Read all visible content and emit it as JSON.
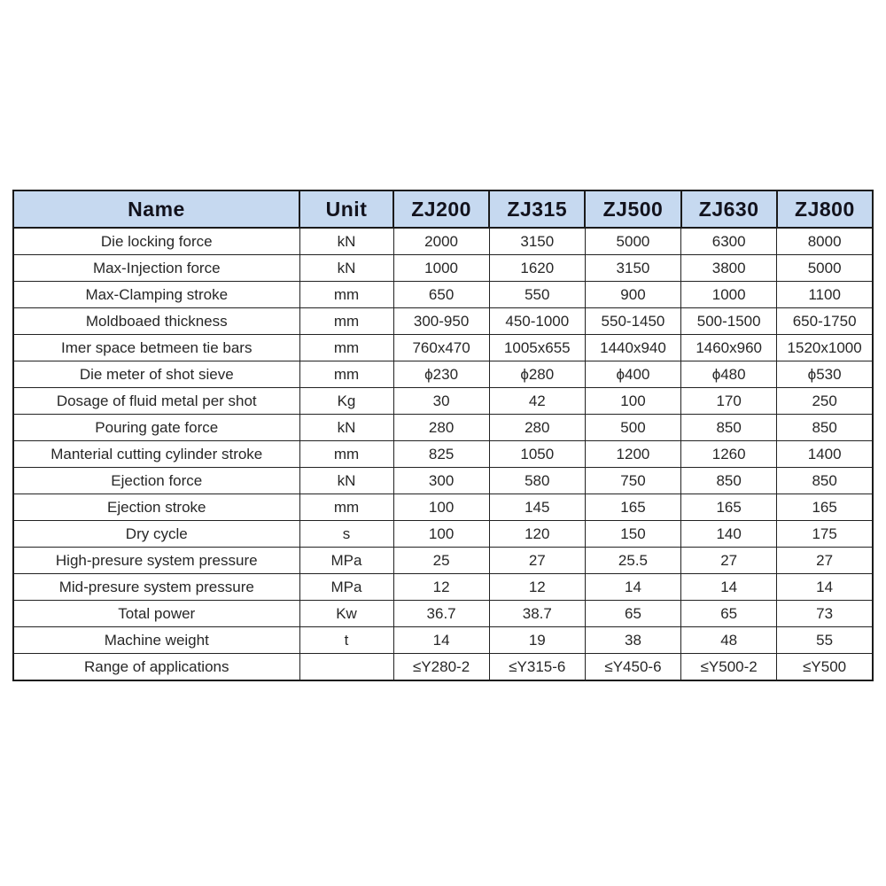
{
  "colors": {
    "page_bg": "#ffffff",
    "header_bg": "#c6d9f0",
    "header_text": "#12121c",
    "body_text": "#272727",
    "border": "#1b1b1b"
  },
  "table": {
    "columns": [
      "Name",
      "Unit",
      "ZJ200",
      "ZJ315",
      "ZJ500",
      "ZJ630",
      "ZJ800"
    ],
    "rows": [
      {
        "name": "Die locking force",
        "unit": "kN",
        "values": [
          "2000",
          "3150",
          "5000",
          "6300",
          "8000"
        ]
      },
      {
        "name": "Max-Injection force",
        "unit": "kN",
        "values": [
          "1000",
          "1620",
          "3150",
          "3800",
          "5000"
        ]
      },
      {
        "name": "Max-Clamping stroke",
        "unit": "mm",
        "values": [
          "650",
          "550",
          "900",
          "1000",
          "1100"
        ]
      },
      {
        "name": "Moldboaed thickness",
        "unit": "mm",
        "values": [
          "300-950",
          "450-1000",
          "550-1450",
          "500-1500",
          "650-1750"
        ]
      },
      {
        "name": "Imer space betmeen tie bars",
        "unit": "mm",
        "values": [
          "760x470",
          "1005x655",
          "1440x940",
          "1460x960",
          "1520x1000"
        ]
      },
      {
        "name": "Die meter of shot sieve",
        "unit": "mm",
        "values": [
          "ϕ230",
          "ϕ280",
          "ϕ400",
          "ϕ480",
          "ϕ530"
        ]
      },
      {
        "name": "Dosage of fluid metal per shot",
        "unit": "Kg",
        "values": [
          "30",
          "42",
          "100",
          "170",
          "250"
        ]
      },
      {
        "name": "Pouring gate force",
        "unit": "kN",
        "values": [
          "280",
          "280",
          "500",
          "850",
          "850"
        ]
      },
      {
        "name": "Manterial cutting cylinder stroke",
        "unit": "mm",
        "values": [
          "825",
          "1050",
          "1200",
          "1260",
          "1400"
        ]
      },
      {
        "name": "Ejection force",
        "unit": "kN",
        "values": [
          "300",
          "580",
          "750",
          "850",
          "850"
        ]
      },
      {
        "name": "Ejection stroke",
        "unit": "mm",
        "values": [
          "100",
          "145",
          "165",
          "165",
          "165"
        ]
      },
      {
        "name": "Dry cycle",
        "unit": "s",
        "values": [
          "100",
          "120",
          "150",
          "140",
          "175"
        ]
      },
      {
        "name": "High-presure system pressure",
        "unit": "MPa",
        "values": [
          "25",
          "27",
          "25.5",
          "27",
          "27"
        ]
      },
      {
        "name": "Mid-presure system pressure",
        "unit": "MPa",
        "values": [
          "12",
          "12",
          "14",
          "14",
          "14"
        ]
      },
      {
        "name": "Total power",
        "unit": "Kw",
        "values": [
          "36.7",
          "38.7",
          "65",
          "65",
          "73"
        ]
      },
      {
        "name": "Machine weight",
        "unit": "t",
        "values": [
          "14",
          "19",
          "38",
          "48",
          "55"
        ]
      },
      {
        "name": "Range of applications",
        "unit": "",
        "values": [
          "≤Y280-2",
          "≤Y315-6",
          "≤Y450-6",
          "≤Y500-2",
          "≤Y500"
        ]
      }
    ]
  },
  "chart_data": {
    "type": "table",
    "title": "",
    "columns": [
      "Name",
      "Unit",
      "ZJ200",
      "ZJ315",
      "ZJ500",
      "ZJ630",
      "ZJ800"
    ],
    "rows": [
      [
        "Die locking force",
        "kN",
        "2000",
        "3150",
        "5000",
        "6300",
        "8000"
      ],
      [
        "Max-Injection force",
        "kN",
        "1000",
        "1620",
        "3150",
        "3800",
        "5000"
      ],
      [
        "Max-Clamping stroke",
        "mm",
        "650",
        "550",
        "900",
        "1000",
        "1100"
      ],
      [
        "Moldboaed thickness",
        "mm",
        "300-950",
        "450-1000",
        "550-1450",
        "500-1500",
        "650-1750"
      ],
      [
        "Imer space betmeen tie bars",
        "mm",
        "760x470",
        "1005x655",
        "1440x940",
        "1460x960",
        "1520x1000"
      ],
      [
        "Die meter of shot sieve",
        "mm",
        "ϕ230",
        "ϕ280",
        "ϕ400",
        "ϕ480",
        "ϕ530"
      ],
      [
        "Dosage of fluid metal per shot",
        "Kg",
        "30",
        "42",
        "100",
        "170",
        "250"
      ],
      [
        "Pouring gate force",
        "kN",
        "280",
        "280",
        "500",
        "850",
        "850"
      ],
      [
        "Manterial cutting cylinder stroke",
        "mm",
        "825",
        "1050",
        "1200",
        "1260",
        "1400"
      ],
      [
        "Ejection force",
        "kN",
        "300",
        "580",
        "750",
        "850",
        "850"
      ],
      [
        "Ejection stroke",
        "mm",
        "100",
        "145",
        "165",
        "165",
        "165"
      ],
      [
        "Dry cycle",
        "s",
        "100",
        "120",
        "150",
        "140",
        "175"
      ],
      [
        "High-presure system pressure",
        "MPa",
        "25",
        "27",
        "25.5",
        "27",
        "27"
      ],
      [
        "Mid-presure system pressure",
        "MPa",
        "12",
        "12",
        "14",
        "14",
        "14"
      ],
      [
        "Total power",
        "Kw",
        "36.7",
        "38.7",
        "65",
        "65",
        "73"
      ],
      [
        "Machine weight",
        "t",
        "14",
        "19",
        "38",
        "48",
        "55"
      ],
      [
        "Range of applications",
        "",
        "≤Y280-2",
        "≤Y315-6",
        "≤Y450-6",
        "≤Y500-2",
        "≤Y500"
      ]
    ]
  }
}
